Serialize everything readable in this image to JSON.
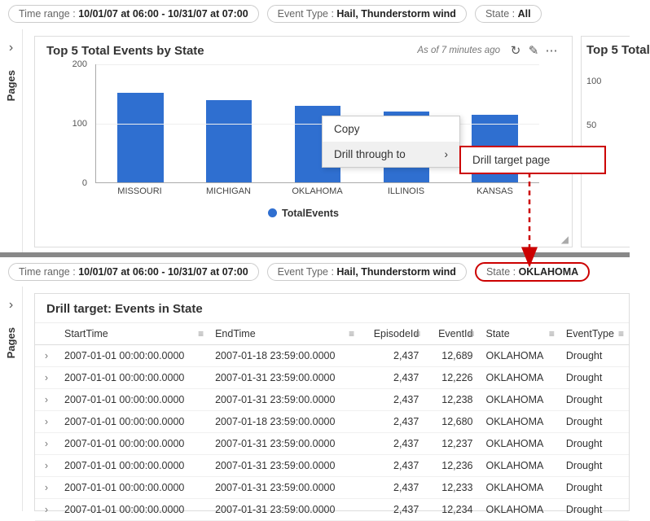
{
  "top": {
    "filters": [
      {
        "label": "Time range : ",
        "value": "10/01/07 at 06:00 - 10/31/07 at 07:00"
      },
      {
        "label": "Event Type : ",
        "value": "Hail, Thunderstorm wind"
      },
      {
        "label": "State : ",
        "value": "All"
      }
    ],
    "pages_label": "Pages",
    "panel": {
      "title": "Top 5 Total Events by State",
      "meta": "As of 7 minutes ago",
      "chart": {
        "type": "bar",
        "ylim": [
          0,
          200
        ],
        "yticks": [
          0,
          100,
          200
        ],
        "categories": [
          "MISSOURI",
          "MICHIGAN",
          "OKLAHOMA",
          "ILLINOIS",
          "KANSAS"
        ],
        "values": [
          152,
          140,
          130,
          120,
          115
        ],
        "bar_color": "#2f6fd0",
        "background_color": "#ffffff",
        "grid_color": "#eeeeee",
        "bar_width": 0.52,
        "category_fontsize": 11,
        "tick_fontsize": 11
      },
      "legend_label": "TotalEvents",
      "legend_color": "#2f6fd0"
    },
    "panel2": {
      "title": "Top 5 Total",
      "yticks": [
        100,
        50
      ]
    },
    "context_menu": {
      "copy": "Copy",
      "drill_through": "Drill through to",
      "submenu": "Drill target page"
    }
  },
  "bottom": {
    "filters": [
      {
        "label": "Time range : ",
        "value": "10/01/07 at 06:00 - 10/31/07 at 07:00"
      },
      {
        "label": "Event Type : ",
        "value": "Hail, Thunderstorm wind"
      },
      {
        "label": "State : ",
        "value": "OKLAHOMA",
        "highlight": true
      }
    ],
    "pages_label": "Pages",
    "table": {
      "title": "Drill target: Events in State",
      "columns": [
        "",
        "StartTime",
        "EndTime",
        "EpisodeId",
        "EventId",
        "State",
        "EventType"
      ],
      "col_align": [
        "center",
        "left",
        "left",
        "right",
        "right",
        "left",
        "left"
      ],
      "rows": [
        [
          "2007-01-01 00:00:00.0000",
          "2007-01-18 23:59:00.0000",
          "2,437",
          "12,689",
          "OKLAHOMA",
          "Drought"
        ],
        [
          "2007-01-01 00:00:00.0000",
          "2007-01-31 23:59:00.0000",
          "2,437",
          "12,226",
          "OKLAHOMA",
          "Drought"
        ],
        [
          "2007-01-01 00:00:00.0000",
          "2007-01-31 23:59:00.0000",
          "2,437",
          "12,238",
          "OKLAHOMA",
          "Drought"
        ],
        [
          "2007-01-01 00:00:00.0000",
          "2007-01-18 23:59:00.0000",
          "2,437",
          "12,680",
          "OKLAHOMA",
          "Drought"
        ],
        [
          "2007-01-01 00:00:00.0000",
          "2007-01-31 23:59:00.0000",
          "2,437",
          "12,237",
          "OKLAHOMA",
          "Drought"
        ],
        [
          "2007-01-01 00:00:00.0000",
          "2007-01-31 23:59:00.0000",
          "2,437",
          "12,236",
          "OKLAHOMA",
          "Drought"
        ],
        [
          "2007-01-01 00:00:00.0000",
          "2007-01-31 23:59:00.0000",
          "2,437",
          "12,233",
          "OKLAHOMA",
          "Drought"
        ],
        [
          "2007-01-01 00:00:00.0000",
          "2007-01-31 23:59:00.0000",
          "2,437",
          "12,234",
          "OKLAHOMA",
          "Drought"
        ]
      ]
    }
  },
  "arrow_color": "#c00"
}
